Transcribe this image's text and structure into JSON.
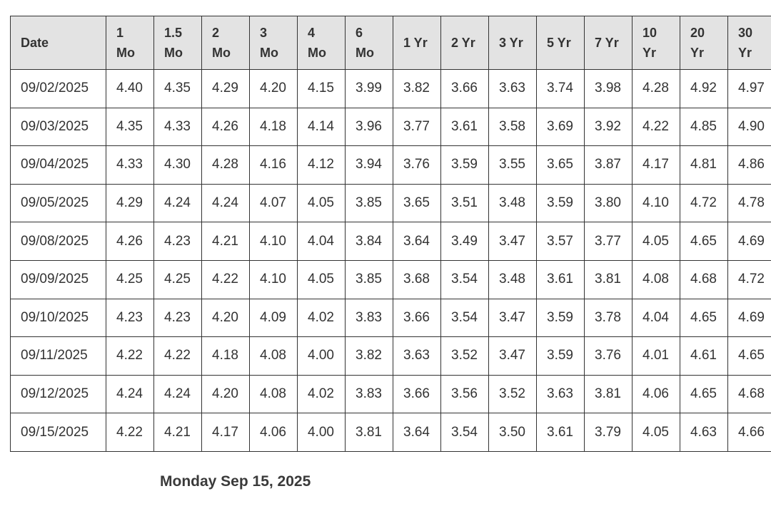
{
  "table": {
    "columns": [
      [
        "Date"
      ],
      [
        "1",
        "Mo"
      ],
      [
        "1.5",
        "Mo"
      ],
      [
        "2",
        "Mo"
      ],
      [
        "3",
        "Mo"
      ],
      [
        "4",
        "Mo"
      ],
      [
        "6",
        "Mo"
      ],
      [
        "1 Yr"
      ],
      [
        "2 Yr"
      ],
      [
        "3 Yr"
      ],
      [
        "5 Yr"
      ],
      [
        "7 Yr"
      ],
      [
        "10",
        "Yr"
      ],
      [
        "20",
        "Yr"
      ],
      [
        "30",
        "Yr"
      ]
    ],
    "rows": [
      [
        "09/02/2025",
        "4.40",
        "4.35",
        "4.29",
        "4.20",
        "4.15",
        "3.99",
        "3.82",
        "3.66",
        "3.63",
        "3.74",
        "3.98",
        "4.28",
        "4.92",
        "4.97"
      ],
      [
        "09/03/2025",
        "4.35",
        "4.33",
        "4.26",
        "4.18",
        "4.14",
        "3.96",
        "3.77",
        "3.61",
        "3.58",
        "3.69",
        "3.92",
        "4.22",
        "4.85",
        "4.90"
      ],
      [
        "09/04/2025",
        "4.33",
        "4.30",
        "4.28",
        "4.16",
        "4.12",
        "3.94",
        "3.76",
        "3.59",
        "3.55",
        "3.65",
        "3.87",
        "4.17",
        "4.81",
        "4.86"
      ],
      [
        "09/05/2025",
        "4.29",
        "4.24",
        "4.24",
        "4.07",
        "4.05",
        "3.85",
        "3.65",
        "3.51",
        "3.48",
        "3.59",
        "3.80",
        "4.10",
        "4.72",
        "4.78"
      ],
      [
        "09/08/2025",
        "4.26",
        "4.23",
        "4.21",
        "4.10",
        "4.04",
        "3.84",
        "3.64",
        "3.49",
        "3.47",
        "3.57",
        "3.77",
        "4.05",
        "4.65",
        "4.69"
      ],
      [
        "09/09/2025",
        "4.25",
        "4.25",
        "4.22",
        "4.10",
        "4.05",
        "3.85",
        "3.68",
        "3.54",
        "3.48",
        "3.61",
        "3.81",
        "4.08",
        "4.68",
        "4.72"
      ],
      [
        "09/10/2025",
        "4.23",
        "4.23",
        "4.20",
        "4.09",
        "4.02",
        "3.83",
        "3.66",
        "3.54",
        "3.47",
        "3.59",
        "3.78",
        "4.04",
        "4.65",
        "4.69"
      ],
      [
        "09/11/2025",
        "4.22",
        "4.22",
        "4.18",
        "4.08",
        "4.00",
        "3.82",
        "3.63",
        "3.52",
        "3.47",
        "3.59",
        "3.76",
        "4.01",
        "4.61",
        "4.65"
      ],
      [
        "09/12/2025",
        "4.24",
        "4.24",
        "4.20",
        "4.08",
        "4.02",
        "3.83",
        "3.66",
        "3.56",
        "3.52",
        "3.63",
        "3.81",
        "4.06",
        "4.65",
        "4.68"
      ],
      [
        "09/15/2025",
        "4.22",
        "4.21",
        "4.17",
        "4.06",
        "4.00",
        "3.81",
        "3.64",
        "3.54",
        "3.50",
        "3.61",
        "3.79",
        "4.05",
        "4.63",
        "4.66"
      ]
    ]
  },
  "caption": "Monday Sep 15, 2025",
  "colors": {
    "header_background": "#e3e3e3",
    "border": "#333333",
    "text": "#333333"
  }
}
